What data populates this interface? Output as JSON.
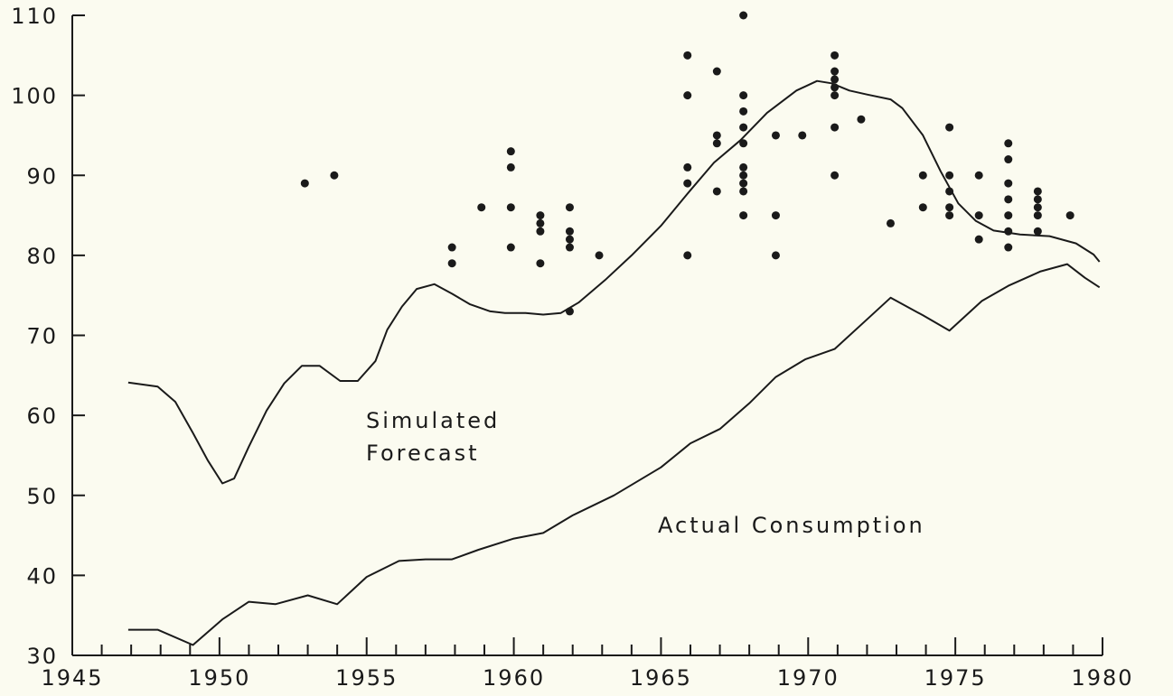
{
  "chart_data": {
    "type": "line",
    "xlim": [
      1945,
      1980
    ],
    "ylim": [
      30,
      110
    ],
    "xticks": [
      1945,
      1950,
      1955,
      1960,
      1965,
      1970,
      1975,
      1980
    ],
    "xminorticks": [
      1946,
      1947,
      1948,
      1949,
      1951,
      1952,
      1953,
      1954,
      1956,
      1957,
      1958,
      1959,
      1961,
      1962,
      1963,
      1964,
      1966,
      1967,
      1968,
      1969,
      1971,
      1972,
      1973,
      1974,
      1976,
      1977,
      1978,
      1979
    ],
    "yticks": [
      30,
      40,
      50,
      60,
      70,
      80,
      90,
      100,
      110
    ],
    "series": [
      {
        "name": "Simulated Forecast",
        "color": "#1a1a1a",
        "x": [
          1946.9,
          1947.9,
          1948.5,
          1949.1,
          1949.6,
          1950.1,
          1950.5,
          1951.0,
          1951.6,
          1952.2,
          1952.8,
          1953.4,
          1954.1,
          1954.7,
          1955.3,
          1955.7,
          1956.2,
          1956.7,
          1957.3,
          1957.9,
          1958.5,
          1959.2,
          1959.7,
          1960.4,
          1961.0,
          1961.6,
          1962.2,
          1963.1,
          1964.0,
          1965.0,
          1965.9,
          1966.8,
          1967.7,
          1968.6,
          1969.6,
          1970.3,
          1970.8,
          1971.4,
          1972.0,
          1972.8,
          1973.2,
          1973.9,
          1974.5,
          1975.1,
          1975.7,
          1976.3,
          1977.2,
          1978.2,
          1979.1,
          1979.7,
          1979.9
        ],
        "values": [
          64.1,
          63.6,
          61.7,
          57.8,
          54.4,
          51.5,
          52.1,
          56.1,
          60.6,
          64.0,
          66.2,
          66.2,
          64.3,
          64.3,
          66.8,
          70.7,
          73.6,
          75.8,
          76.4,
          75.2,
          73.9,
          73.0,
          72.8,
          72.8,
          72.6,
          72.8,
          74.1,
          76.9,
          80.0,
          83.7,
          87.7,
          91.6,
          94.4,
          97.8,
          100.6,
          101.8,
          101.5,
          100.6,
          100.1,
          99.5,
          98.4,
          95.0,
          90.5,
          86.5,
          84.3,
          83.1,
          82.6,
          82.4,
          81.5,
          80.1,
          79.2
        ]
      },
      {
        "name": "Actual Consumption",
        "color": "#1a1a1a",
        "x": [
          1946.9,
          1947.9,
          1949.1,
          1950.1,
          1951.0,
          1951.9,
          1953.0,
          1954.0,
          1955.0,
          1956.1,
          1957.0,
          1957.9,
          1958.8,
          1960.0,
          1961.0,
          1962.0,
          1963.4,
          1965.0,
          1966.0,
          1967.0,
          1968.0,
          1968.9,
          1969.9,
          1970.9,
          1972.0,
          1972.8,
          1973.9,
          1974.8,
          1975.9,
          1976.8,
          1977.9,
          1978.8,
          1979.4,
          1979.9
        ],
        "values": [
          33.2,
          33.2,
          31.3,
          34.5,
          36.7,
          36.4,
          37.5,
          36.4,
          39.8,
          41.8,
          42.0,
          42.0,
          43.2,
          44.6,
          45.3,
          47.5,
          50.0,
          53.5,
          56.5,
          58.3,
          61.5,
          64.8,
          67.0,
          68.3,
          72.0,
          74.7,
          72.5,
          70.6,
          74.3,
          76.2,
          78.0,
          78.9,
          77.2,
          76.0
        ]
      }
    ],
    "scatter": {
      "color": "#1a1a1a",
      "x": [
        1952.9,
        1953.9,
        1957.9,
        1957.9,
        1958.9,
        1959.9,
        1959.9,
        1959.9,
        1959.9,
        1960.9,
        1960.9,
        1960.9,
        1960.9,
        1961.9,
        1961.9,
        1961.9,
        1961.9,
        1961.9,
        1962.9,
        1965.9,
        1965.9,
        1965.9,
        1965.9,
        1965.9,
        1966.9,
        1966.9,
        1966.9,
        1966.9,
        1967.8,
        1967.8,
        1967.8,
        1967.8,
        1967.8,
        1967.8,
        1967.8,
        1967.8,
        1967.8,
        1967.8,
        1968.9,
        1968.9,
        1968.9,
        1969.8,
        1970.9,
        1970.9,
        1970.9,
        1970.9,
        1970.9,
        1970.9,
        1970.9,
        1971.8,
        1972.8,
        1973.9,
        1973.9,
        1974.8,
        1974.8,
        1974.8,
        1974.8,
        1974.8,
        1975.8,
        1975.8,
        1975.8,
        1976.8,
        1976.8,
        1976.8,
        1976.8,
        1976.8,
        1976.8,
        1976.8,
        1977.8,
        1977.8,
        1977.8,
        1977.8,
        1977.8,
        1978.9
      ],
      "values": [
        89,
        90,
        81,
        79,
        86,
        93,
        91,
        86,
        81,
        85,
        84,
        83,
        79,
        86,
        83,
        82,
        81,
        73,
        80,
        105,
        100,
        91,
        89,
        80,
        103,
        95,
        94,
        88,
        110,
        100,
        98,
        96,
        94,
        91,
        90,
        89,
        88,
        85,
        95,
        85,
        80,
        95,
        105,
        103,
        102,
        101,
        100,
        96,
        90,
        97,
        84,
        90,
        86,
        96,
        90,
        88,
        86,
        85,
        90,
        85,
        82,
        94,
        92,
        89,
        87,
        85,
        83,
        81,
        88,
        87,
        86,
        85,
        83,
        85
      ]
    }
  }
}
